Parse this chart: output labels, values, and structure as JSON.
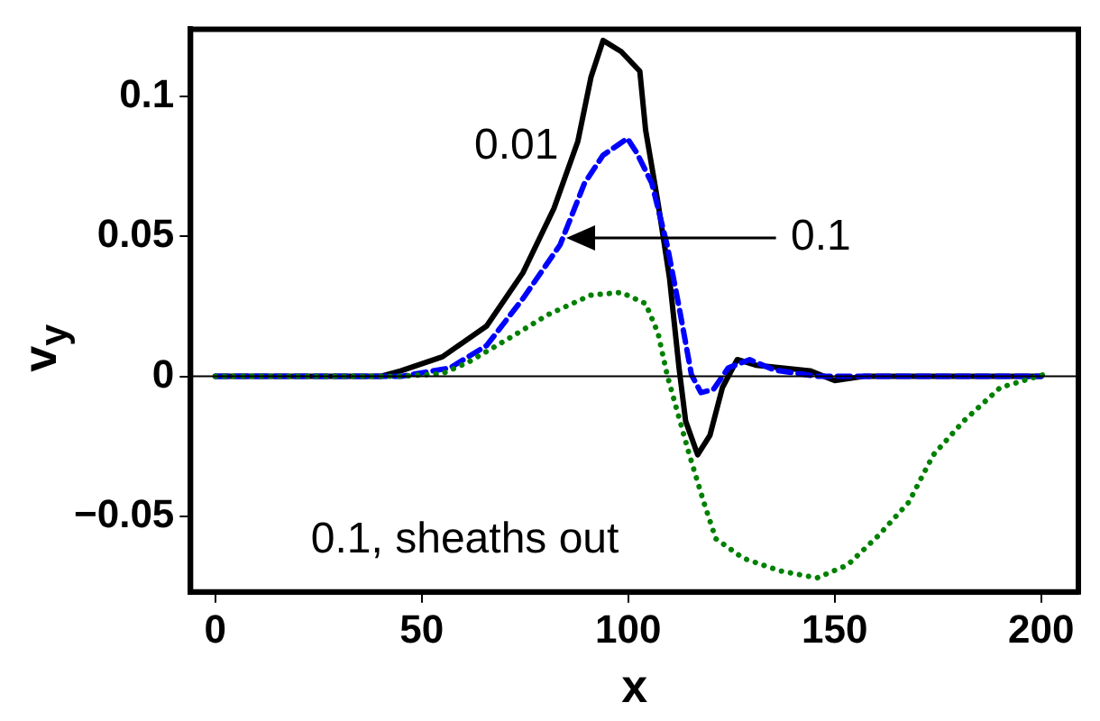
{
  "chart_data": {
    "type": "line",
    "xlabel": "x",
    "ylabel": "v$_{y}$",
    "xlim": [
      -6,
      209
    ],
    "ylim": [
      -0.077,
      0.124
    ],
    "xticks": [
      0,
      50,
      100,
      150,
      200
    ],
    "yticks": [
      {
        "value": -0.05,
        "label": "−0.05"
      },
      0,
      0.05,
      0.1
    ],
    "grid": false,
    "legend": false,
    "marker": "none",
    "series": [
      {
        "color": "#000000",
        "line_style": "solid",
        "x": [
          0,
          20,
          40,
          45,
          55,
          65.7,
          74.5,
          82,
          87.8,
          91,
          93.9,
          98.3,
          102.8,
          104.2,
          107.2,
          110,
          112.3,
          113.9,
          116.8,
          119.8,
          122.8,
          126.4,
          130.9,
          144,
          150,
          157,
          200
        ],
        "values": [
          0,
          0,
          0,
          0.002,
          0.007,
          0.018,
          0.037,
          0.06,
          0.084,
          0.107,
          0.12,
          0.116,
          0.109,
          0.088,
          0.062,
          0.035,
          0.003,
          -0.016,
          -0.028,
          -0.021,
          -0.004,
          0.006,
          0.004,
          0.002,
          -0.0015,
          0,
          0
        ]
      },
      {
        "color": "#0000ff",
        "line_style": "dashed",
        "x": [
          0,
          20,
          45,
          56.8,
          65.7,
          74.6,
          83.5,
          89.4,
          93.9,
          99.8,
          102,
          105.7,
          109.4,
          112.4,
          115.3,
          117.6,
          120.6,
          124.2,
          129.4,
          135.3,
          145.8,
          200
        ],
        "values": [
          0,
          0,
          0,
          0.003,
          0.011,
          0.028,
          0.047,
          0.069,
          0.079,
          0.085,
          0.08,
          0.069,
          0.047,
          0.024,
          0.0006,
          -0.0058,
          -0.0047,
          0.003,
          0.006,
          0.0023,
          0,
          0
        ]
      },
      {
        "color": "#008000",
        "line_style": "dotted",
        "x": [
          0,
          20,
          45,
          55,
          61.2,
          71.6,
          80.5,
          90.9,
          98.3,
          104.2,
          107.2,
          109.4,
          114.6,
          118.3,
          121.2,
          127.9,
          136.8,
          145.7,
          153.1,
          160.5,
          167.9,
          173.9,
          181.2,
          190.1,
          200.5
        ],
        "values": [
          0,
          0,
          0,
          0.001,
          0.005,
          0.014,
          0.022,
          0.029,
          0.03,
          0.026,
          0.0155,
          0.0006,
          -0.027,
          -0.045,
          -0.058,
          -0.065,
          -0.0695,
          -0.072,
          -0.0674,
          -0.057,
          -0.045,
          -0.028,
          -0.016,
          -0.004,
          0.0006
        ]
      }
    ],
    "ref_lines": [
      {
        "axis": "y",
        "value": 0,
        "color": "#000000"
      }
    ],
    "annotations": [
      "0.01",
      "0.1",
      "0.1, sheaths out"
    ]
  }
}
